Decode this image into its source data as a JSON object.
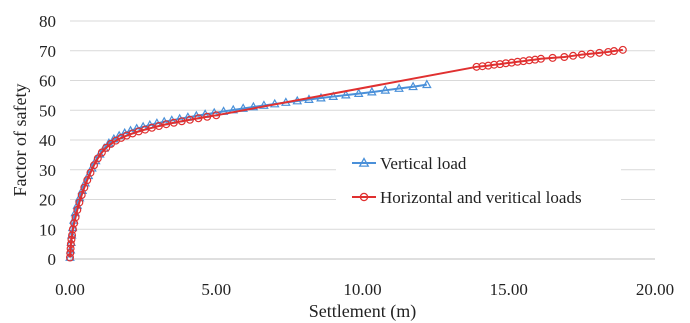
{
  "chart_data": {
    "type": "scatter",
    "title": "",
    "xlabel": "Settlement (m)",
    "ylabel": "Factor of safety",
    "xlim": [
      0,
      20
    ],
    "ylim": [
      0,
      80
    ],
    "x_ticks": [
      0,
      5,
      10,
      15,
      20
    ],
    "x_tick_labels": [
      "0.00",
      "5.00",
      "10.00",
      "15.00",
      "20.00"
    ],
    "y_ticks": [
      0,
      10,
      20,
      30,
      40,
      50,
      60,
      70,
      80
    ],
    "y_tick_labels": [
      "0",
      "10",
      "20",
      "30",
      "40",
      "50",
      "60",
      "70",
      "80"
    ],
    "grid": "horizontal",
    "legend_position": "center-right",
    "series": [
      {
        "name": "Vertical load",
        "color": "#4a90d9",
        "marker": "triangle",
        "x": [
          0.0,
          0.02,
          0.04,
          0.06,
          0.09,
          0.13,
          0.18,
          0.25,
          0.33,
          0.42,
          0.52,
          0.63,
          0.75,
          0.88,
          1.02,
          1.17,
          1.33,
          1.5,
          1.68,
          1.87,
          2.07,
          2.28,
          2.5,
          2.73,
          2.97,
          3.22,
          3.48,
          3.75,
          4.03,
          4.32,
          4.62,
          4.93,
          5.25,
          5.58,
          5.92,
          6.27,
          6.63,
          7.0,
          7.38,
          7.77,
          8.17,
          8.58,
          9.0,
          9.43,
          9.87,
          10.32,
          10.78,
          11.25,
          11.73,
          12.2
        ],
        "y": [
          0.5,
          3,
          5.5,
          8,
          10.5,
          13,
          15.5,
          18,
          20.5,
          23,
          25.5,
          28,
          30.5,
          33,
          35.2,
          37.2,
          38.9,
          40.3,
          41.4,
          42.3,
          43.1,
          43.8,
          44.4,
          45.0,
          45.6,
          46.1,
          46.6,
          47.1,
          47.6,
          48.1,
          48.6,
          49.1,
          49.6,
          50.1,
          50.6,
          51.1,
          51.6,
          52.1,
          52.6,
          53.1,
          53.6,
          54.1,
          54.6,
          55.1,
          55.6,
          56.1,
          56.7,
          57.3,
          57.9,
          58.6
        ]
      },
      {
        "name": "Horizontal and veritical loads",
        "color": "#e03030",
        "marker": "circle",
        "x": [
          0.0,
          0.01,
          0.02,
          0.03,
          0.05,
          0.07,
          0.1,
          0.14,
          0.19,
          0.25,
          0.32,
          0.4,
          0.49,
          0.59,
          0.7,
          0.82,
          0.95,
          1.09,
          1.24,
          1.4,
          1.57,
          1.75,
          1.94,
          2.14,
          2.35,
          2.57,
          2.8,
          3.04,
          3.29,
          3.55,
          3.82,
          4.1,
          4.39,
          4.69,
          5.0,
          13.9,
          14.1,
          14.3,
          14.5,
          14.7,
          14.9,
          15.1,
          15.3,
          15.5,
          15.7,
          15.9,
          16.1,
          16.5,
          16.9,
          17.2,
          17.5,
          17.8,
          18.1,
          18.4,
          18.6,
          18.9
        ],
        "y": [
          0.5,
          2,
          3.5,
          5,
          6.5,
          8,
          10,
          12,
          14,
          16.5,
          19,
          21.5,
          24,
          26.5,
          29,
          31.5,
          33.8,
          35.8,
          37.4,
          38.7,
          39.8,
          40.7,
          41.5,
          42.2,
          42.9,
          43.5,
          44.1,
          44.7,
          45.3,
          45.8,
          46.3,
          46.8,
          47.3,
          47.8,
          48.3,
          64.6,
          64.8,
          65.0,
          65.3,
          65.5,
          65.8,
          66.0,
          66.3,
          66.5,
          66.8,
          67.0,
          67.3,
          67.6,
          67.9,
          68.3,
          68.7,
          69.0,
          69.3,
          69.6,
          69.9,
          70.3
        ]
      }
    ]
  }
}
